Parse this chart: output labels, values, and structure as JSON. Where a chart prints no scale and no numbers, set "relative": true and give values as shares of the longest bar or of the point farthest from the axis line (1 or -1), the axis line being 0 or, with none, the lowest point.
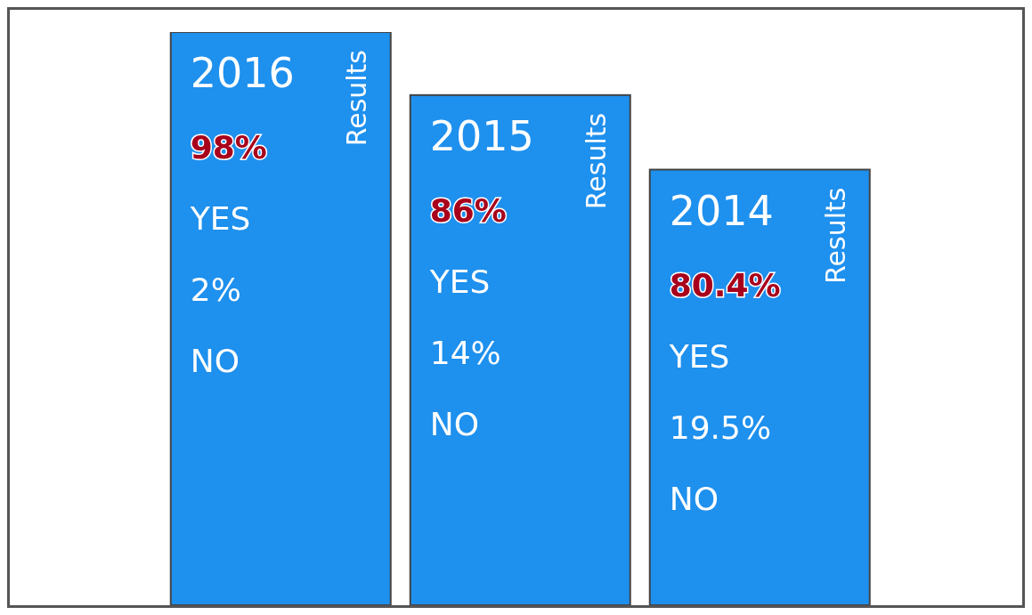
{
  "chart_data": {
    "type": "bar",
    "categories": [
      "2016",
      "2015",
      "2014"
    ],
    "values": [
      1,
      0.89,
      0.76
    ],
    "color": "#1e90ee",
    "relative": true,
    "grid": false,
    "legend": false,
    "annotations": [
      "Results",
      "98%",
      "YES",
      "2%",
      "NO",
      "Results",
      "86%",
      "YES",
      "14%",
      "NO",
      "Results",
      "80.4%",
      "YES",
      "19.5%",
      "NO"
    ]
  }
}
